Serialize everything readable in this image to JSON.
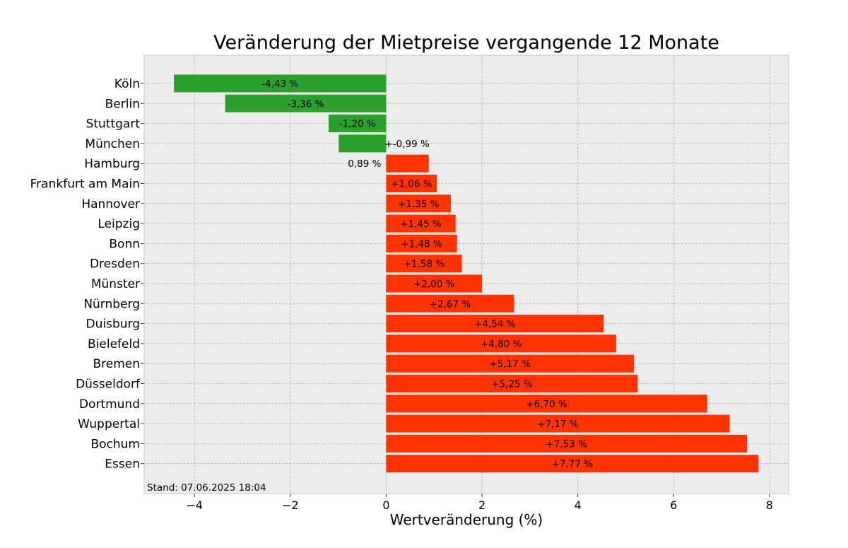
{
  "chart_data": {
    "type": "bar",
    "orientation": "horizontal",
    "title": "Veränderung der Mietpreise vergangende 12 Monate",
    "xlabel": "Wertveränderung (%)",
    "ylabel": "",
    "xlim": [
      -5.05,
      8.4
    ],
    "xticks": [
      -4,
      -2,
      0,
      2,
      4,
      6,
      8
    ],
    "xtick_labels": [
      "−4",
      "−2",
      "0",
      "2",
      "4",
      "6",
      "8"
    ],
    "grid": true,
    "categories": [
      "Köln",
      "Berlin",
      "Stuttgart",
      "München",
      "Hamburg",
      "Frankfurt am Main",
      "Hannover",
      "Leipzig",
      "Bonn",
      "Dresden",
      "Münster",
      "Nürnberg",
      "Duisburg",
      "Bielefeld",
      "Bremen",
      "Düsseldorf",
      "Dortmund",
      "Wuppertal",
      "Bochum",
      "Essen"
    ],
    "values": [
      -4.43,
      -3.36,
      -1.2,
      -0.99,
      0.89,
      1.06,
      1.35,
      1.45,
      1.48,
      1.58,
      2.0,
      2.67,
      4.54,
      4.8,
      5.17,
      5.25,
      6.7,
      7.17,
      7.53,
      7.77
    ],
    "data_labels": [
      "-4,43 %",
      "-3,36 %",
      "-1,20 %",
      "+-0,99 %",
      "0,89 %",
      "+1,06 %",
      "+1,35 %",
      "+1,45 %",
      "+1,48 %",
      "+1,58 %",
      "+2,00 %",
      "+2,67 %",
      "+4,54 %",
      "+4,80 %",
      "+5,17 %",
      "+5,25 %",
      "+6,70 %",
      "+7,17 %",
      "+7,53 %",
      "+7,77 %"
    ],
    "colors": {
      "negative": "#2ca02c",
      "positive": "#ff3300",
      "plot_background": "#ececec",
      "grid": "#b0b0b0",
      "frame": "#c8c8c8"
    },
    "annotation": "Stand: 07.06.2025 18:04"
  }
}
